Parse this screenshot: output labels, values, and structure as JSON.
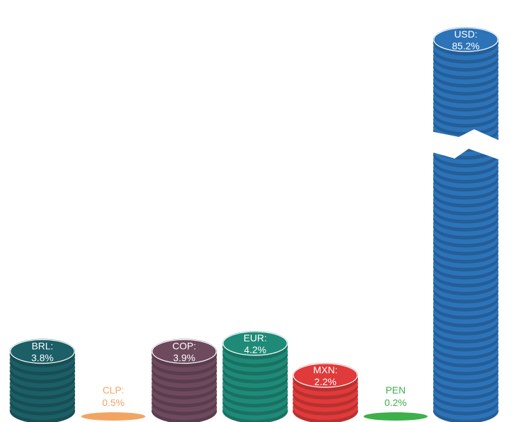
{
  "chart_data": {
    "type": "bar",
    "title": "",
    "xlabel": "",
    "ylabel": "",
    "categories": [
      "BRL",
      "CLP",
      "COP",
      "EUR",
      "MXN",
      "PEN",
      "USD"
    ],
    "values": [
      3.8,
      0.5,
      3.9,
      4.2,
      2.2,
      0.2,
      85.2
    ],
    "labels": [
      {
        "code": "BRL:",
        "pct": "3.8%"
      },
      {
        "code": "CLP:",
        "pct": "0.5%"
      },
      {
        "code": "COP:",
        "pct": "3.9%"
      },
      {
        "code": "EUR:",
        "pct": "4.2%"
      },
      {
        "code": "MXN:",
        "pct": "2.2%"
      },
      {
        "code": "PEN",
        "pct": "0.2%"
      },
      {
        "code": "USD:",
        "pct": "85.2%"
      }
    ],
    "colors": [
      "#1c5f66",
      "#f2a562",
      "#6e4a5e",
      "#1f8a78",
      "#e03a3a",
      "#3db04a",
      "#2c73b8"
    ],
    "axis_break": true
  }
}
